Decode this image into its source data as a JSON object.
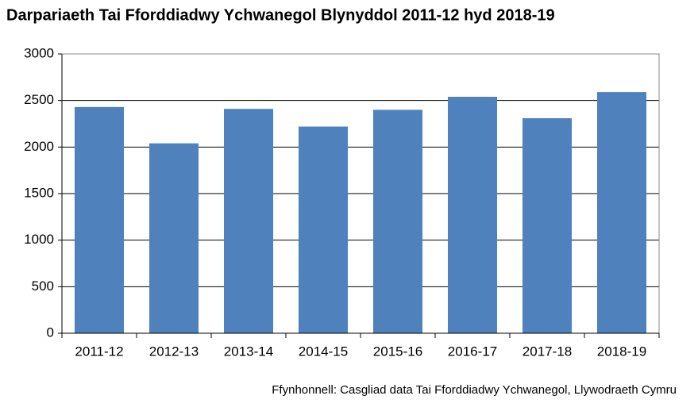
{
  "chart_data": {
    "type": "bar",
    "title": "Darpariaeth Tai Fforddiadwy Ychwanegol Blynyddol 2011-12 hyd 2018-19",
    "categories": [
      "2011-12",
      "2012-13",
      "2013-14",
      "2014-15",
      "2015-16",
      "2016-17",
      "2017-18",
      "2018-19"
    ],
    "values": [
      2430,
      2040,
      2410,
      2220,
      2400,
      2540,
      2310,
      2590
    ],
    "color": "#4f81bd",
    "ylim": [
      0,
      3000
    ],
    "yticks": [
      0,
      500,
      1000,
      1500,
      2000,
      2500,
      3000
    ],
    "grid": true,
    "source": "Ffynhonnell: Casgliad data Tai Fforddiadwy Ychwanegol, Llywodraeth Cymru"
  }
}
